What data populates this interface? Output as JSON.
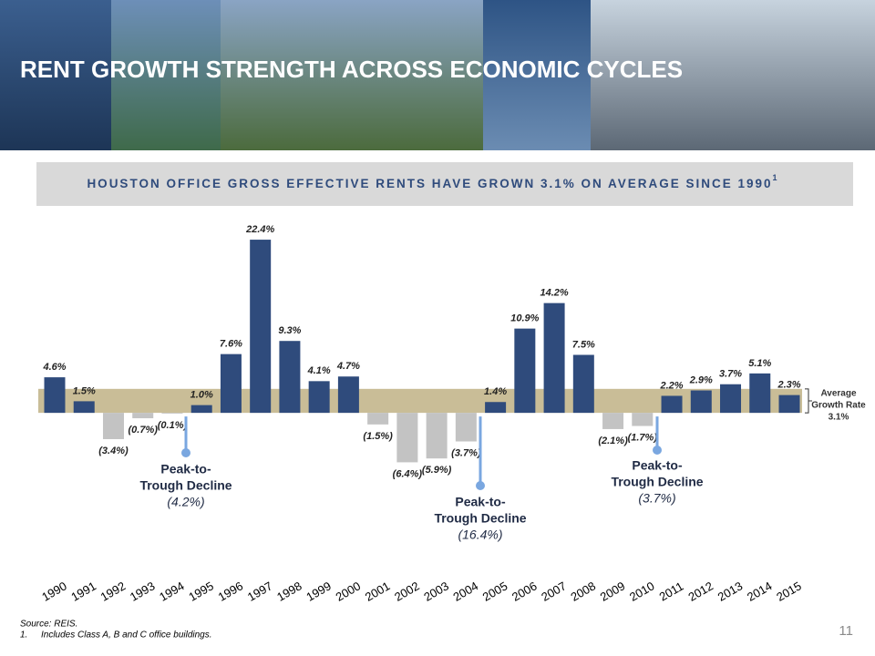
{
  "header": {
    "title": "RENT GROWTH STRENGTH ACROSS ECONOMIC CYCLES",
    "subtitle": "HOUSTON OFFICE GROSS EFFECTIVE RENTS HAVE GROWN 3.1% ON AVERAGE SINCE 1990",
    "subtitle_note": "1"
  },
  "chart_data": {
    "type": "bar",
    "categories": [
      "1990",
      "1991",
      "1992",
      "1993",
      "1994",
      "1995",
      "1996",
      "1997",
      "1998",
      "1999",
      "2000",
      "2001",
      "2002",
      "2003",
      "2004",
      "2005",
      "2006",
      "2007",
      "2008",
      "2009",
      "2010",
      "2011",
      "2012",
      "2013",
      "2014",
      "2015"
    ],
    "values": [
      4.6,
      1.5,
      -3.4,
      -0.7,
      -0.1,
      1.0,
      7.6,
      22.4,
      9.3,
      4.1,
      4.7,
      -1.5,
      -6.4,
      -5.9,
      -3.7,
      1.4,
      10.9,
      14.2,
      7.5,
      -2.1,
      -1.7,
      2.2,
      2.9,
      3.7,
      5.1,
      2.3
    ],
    "value_labels": [
      "4.6%",
      "1.5%",
      "(3.4%)",
      "(0.7%)",
      "(0.1%)",
      "1.0%",
      "7.6%",
      "22.4%",
      "9.3%",
      "4.1%",
      "4.7%",
      "(1.5%)",
      "(6.4%)",
      "(5.9%)",
      "(3.7%)",
      "1.4%",
      "10.9%",
      "14.2%",
      "7.5%",
      "(2.1%)",
      "(1.7%)",
      "2.2%",
      "2.9%",
      "3.7%",
      "5.1%",
      "2.3%"
    ],
    "color_positive": "#2f4b7c",
    "color_negative": "#c3c3c3",
    "ylim": [
      -8,
      25
    ],
    "average": {
      "label_lines": [
        "Average",
        "Growth Rate"
      ],
      "value": 3.1,
      "value_label": "3.1%",
      "color": "#c9bd97"
    },
    "annotations": [
      {
        "lines": [
          "Peak-to-",
          "Trough Decline"
        ],
        "value": -4.2,
        "value_label": "(4.2%)"
      },
      {
        "lines": [
          "Peak-to-",
          "Trough Decline"
        ],
        "value": -16.4,
        "value_label": "(16.4%)"
      },
      {
        "lines": [
          "Peak-to-",
          "Trough Decline"
        ],
        "value": -3.7,
        "value_label": "(3.7%)"
      }
    ]
  },
  "footer": {
    "source": "Source: REIS.",
    "note_number": "1.",
    "note": "Includes Class A, B and C office buildings.",
    "page": "11"
  }
}
